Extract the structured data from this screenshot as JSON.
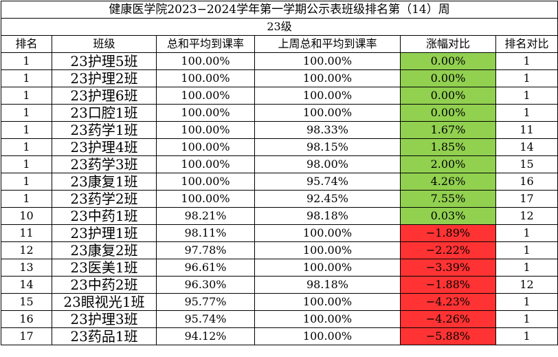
{
  "title": "健康医学院2023−2024学年第一学期公示表班级排名第（14）周",
  "grade": "23级",
  "headers": {
    "rank": "排名",
    "class": "班级",
    "avg": "总和平均到课率",
    "last_avg": "上周总和平均到课率",
    "change": "涨幅对比",
    "rank_change": "排名对比"
  },
  "colors": {
    "increase": "#92d050",
    "decrease": "#ff3333"
  },
  "rows": [
    {
      "rank": "1",
      "class": "23护理5班",
      "avg": "100.00%",
      "last_avg": "100.00%",
      "change": "0.00%",
      "rank_change": "1",
      "trend": "pos"
    },
    {
      "rank": "1",
      "class": "23护理2班",
      "avg": "100.00%",
      "last_avg": "100.00%",
      "change": "0.00%",
      "rank_change": "1",
      "trend": "pos"
    },
    {
      "rank": "1",
      "class": "23护理6班",
      "avg": "100.00%",
      "last_avg": "100.00%",
      "change": "0.00%",
      "rank_change": "1",
      "trend": "pos"
    },
    {
      "rank": "1",
      "class": "23口腔1班",
      "avg": "100.00%",
      "last_avg": "100.00%",
      "change": "0.00%",
      "rank_change": "1",
      "trend": "pos"
    },
    {
      "rank": "1",
      "class": "23药学1班",
      "avg": "100.00%",
      "last_avg": "98.33%",
      "change": "1.67%",
      "rank_change": "11",
      "trend": "pos"
    },
    {
      "rank": "1",
      "class": "23护理4班",
      "avg": "100.00%",
      "last_avg": "98.15%",
      "change": "1.85%",
      "rank_change": "14",
      "trend": "pos"
    },
    {
      "rank": "1",
      "class": "23药学3班",
      "avg": "100.00%",
      "last_avg": "98.00%",
      "change": "2.00%",
      "rank_change": "15",
      "trend": "pos"
    },
    {
      "rank": "1",
      "class": "23康复1班",
      "avg": "100.00%",
      "last_avg": "95.74%",
      "change": "4.26%",
      "rank_change": "16",
      "trend": "pos"
    },
    {
      "rank": "1",
      "class": "23药学2班",
      "avg": "100.00%",
      "last_avg": "92.45%",
      "change": "7.55%",
      "rank_change": "17",
      "trend": "pos"
    },
    {
      "rank": "10",
      "class": "23中药1班",
      "avg": "98.21%",
      "last_avg": "98.18%",
      "change": "0.03%",
      "rank_change": "12",
      "trend": "pos"
    },
    {
      "rank": "11",
      "class": "23护理1班",
      "avg": "98.11%",
      "last_avg": "100.00%",
      "change": "−1.89%",
      "rank_change": "1",
      "trend": "neg"
    },
    {
      "rank": "12",
      "class": "23康复2班",
      "avg": "97.78%",
      "last_avg": "100.00%",
      "change": "−2.22%",
      "rank_change": "1",
      "trend": "neg"
    },
    {
      "rank": "13",
      "class": "23医美1班",
      "avg": "96.61%",
      "last_avg": "100.00%",
      "change": "−3.39%",
      "rank_change": "1",
      "trend": "neg"
    },
    {
      "rank": "14",
      "class": "23中药2班",
      "avg": "96.30%",
      "last_avg": "98.18%",
      "change": "−1.88%",
      "rank_change": "12",
      "trend": "neg"
    },
    {
      "rank": "15",
      "class": "23眼视光1班",
      "avg": "95.77%",
      "last_avg": "100.00%",
      "change": "−4.23%",
      "rank_change": "1",
      "trend": "neg"
    },
    {
      "rank": "16",
      "class": "23护理3班",
      "avg": "95.74%",
      "last_avg": "100.00%",
      "change": "−4.26%",
      "rank_change": "1",
      "trend": "neg"
    },
    {
      "rank": "17",
      "class": "23药品1班",
      "avg": "94.12%",
      "last_avg": "100.00%",
      "change": "−5.88%",
      "rank_change": "1",
      "trend": "neg"
    }
  ]
}
